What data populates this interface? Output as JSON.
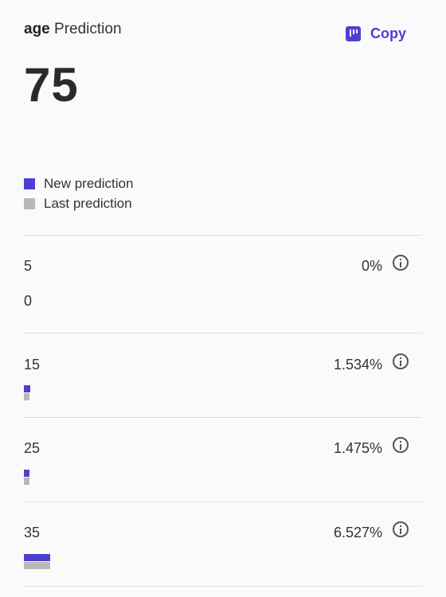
{
  "header": {
    "field_name": "age",
    "title_suffix": "Prediction",
    "copy_label": "Copy"
  },
  "prediction_value": "75",
  "legend": {
    "new_label": "New prediction",
    "last_label": "Last prediction"
  },
  "colors": {
    "accent": "#4f3fd1",
    "last": "#b8b8b8"
  },
  "icons": {
    "copy": "copy-icon",
    "info": "info-icon"
  },
  "rows": [
    {
      "label": "5",
      "percent": "0%",
      "sub_value": "0",
      "new_fraction": 0,
      "last_fraction": 0
    },
    {
      "label": "15",
      "percent": "1.534%",
      "new_fraction": 0.01534,
      "last_fraction": 0.0148
    },
    {
      "label": "25",
      "percent": "1.475%",
      "new_fraction": 0.01475,
      "last_fraction": 0.0146
    },
    {
      "label": "35",
      "percent": "6.527%",
      "new_fraction": 0.06527,
      "last_fraction": 0.065
    }
  ]
}
